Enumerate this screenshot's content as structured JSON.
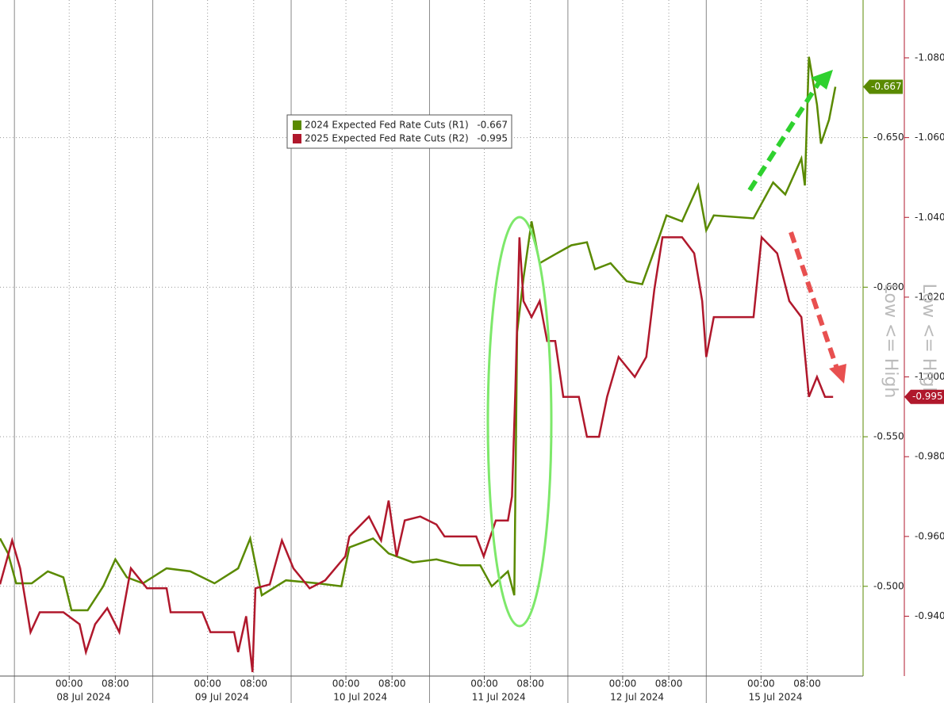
{
  "chart_data": {
    "type": "line",
    "xlim": [
      -12,
      137.7
    ],
    "xticks": [
      {
        "value": 0,
        "label": "00:00"
      },
      {
        "value": 8,
        "label": "08:00"
      },
      {
        "value": 24,
        "label": "00:00"
      },
      {
        "value": 32,
        "label": "08:00"
      },
      {
        "value": 48,
        "label": "00:00"
      },
      {
        "value": 56,
        "label": "08:00"
      },
      {
        "value": 72,
        "label": "00:00"
      },
      {
        "value": 80,
        "label": "08:00"
      },
      {
        "value": 96,
        "label": "00:00"
      },
      {
        "value": 104,
        "label": "08:00"
      },
      {
        "value": 120,
        "label": "00:00"
      },
      {
        "value": 128,
        "label": "08:00"
      }
    ],
    "x_day_labels": [
      {
        "value": 2.5,
        "label": "08 Jul 2024"
      },
      {
        "value": 26.5,
        "label": "09 Jul 2024"
      },
      {
        "value": 50.5,
        "label": "10 Jul 2024"
      },
      {
        "value": 74.5,
        "label": "11 Jul 2024"
      },
      {
        "value": 98.5,
        "label": "12 Jul 2024"
      },
      {
        "value": 122.5,
        "label": "15 Jul 2024"
      }
    ],
    "ylim": [
      -0.47,
      -0.696
    ],
    "yticks": [
      {
        "value": -0.5,
        "label": "-0.500"
      },
      {
        "value": -0.55,
        "label": "-0.550"
      },
      {
        "value": -0.6,
        "label": "-0.600"
      },
      {
        "value": -0.65,
        "label": "-0.650"
      }
    ],
    "y2lim": [
      -0.925,
      -1.0945
    ],
    "y2ticks": [
      {
        "value": -0.94,
        "label": "-0.940"
      },
      {
        "value": -0.96,
        "label": "-0.960"
      },
      {
        "value": -0.98,
        "label": "-0.980"
      },
      {
        "value": -1.0,
        "label": "-1.000"
      },
      {
        "value": -1.02,
        "label": "-1.020"
      },
      {
        "value": -1.04,
        "label": "-1.040"
      },
      {
        "value": -1.06,
        "label": "-1.060"
      },
      {
        "value": -1.08,
        "label": "-1.080"
      }
    ],
    "y_label": "Low <= High",
    "y2_label": "Low <= High",
    "grid": true,
    "series": [
      {
        "name": "2024 Expected Fed Rate Cuts (R1)",
        "color": "#5a8a00",
        "axis": "y",
        "last_label": "-0.667",
        "x": [
          -12.0,
          -10.6,
          -9.2,
          -6.5,
          -3.7,
          -1.0,
          0.4,
          3.2,
          5.9,
          8.0,
          10.0,
          12.8,
          16.9,
          21.0,
          25.2,
          29.3,
          31.4,
          33.4,
          37.6,
          43.1,
          47.2,
          48.6,
          52.7,
          55.4,
          59.6,
          63.7,
          67.8,
          71.3,
          73.3,
          76.1,
          77.2,
          77.7,
          78.8,
          80.2,
          81.6,
          84.3,
          87.1,
          89.8,
          91.2,
          93.9,
          96.7,
          99.4,
          102.2,
          103.6,
          106.3,
          109.1,
          110.5,
          111.8,
          118.7,
          120.1,
          122.1,
          124.2,
          127.0,
          127.6,
          128.3,
          129.7,
          130.4,
          131.8,
          132.9
        ],
        "values": [
          -0.516,
          -0.511,
          -0.501,
          -0.501,
          -0.505,
          -0.503,
          -0.492,
          -0.492,
          -0.5,
          -0.509,
          -0.503,
          -0.501,
          -0.506,
          -0.505,
          -0.501,
          -0.506,
          -0.516,
          -0.497,
          -0.502,
          -0.501,
          -0.5,
          -0.513,
          -0.516,
          -0.511,
          -0.508,
          -0.509,
          -0.507,
          -0.507,
          -0.5,
          -0.505,
          -0.497,
          -0.585,
          -0.603,
          -0.622,
          -0.608,
          -0.611,
          -0.614,
          -0.615,
          -0.606,
          -0.608,
          -0.602,
          -0.601,
          -0.616,
          -0.624,
          -0.622,
          -0.634,
          -0.619,
          -0.624,
          -0.623,
          -0.628,
          -0.635,
          -0.631,
          -0.643,
          -0.634,
          -0.677,
          -0.661,
          -0.648,
          -0.656,
          -0.667
        ]
      },
      {
        "name": "2025 Expected Fed Rate Cuts (R2)",
        "color": "#b0182c",
        "axis": "y2",
        "last_label": "-0.995",
        "x": [
          -12.0,
          -9.9,
          -8.5,
          -6.7,
          -5.1,
          -1.0,
          1.8,
          2.9,
          4.5,
          6.6,
          8.7,
          10.7,
          13.5,
          16.9,
          17.6,
          23.1,
          24.5,
          28.6,
          29.3,
          30.7,
          31.8,
          32.3,
          34.8,
          36.9,
          38.9,
          41.7,
          44.4,
          47.9,
          48.6,
          52.0,
          54.1,
          55.4,
          56.8,
          58.2,
          60.9,
          63.7,
          65.1,
          70.6,
          71.9,
          74.0,
          76.1,
          76.8,
          77.4,
          78.1,
          78.8,
          80.2,
          81.6,
          82.9,
          84.3,
          85.7,
          88.4,
          89.8,
          91.9,
          93.3,
          95.3,
          98.1,
          100.1,
          101.5,
          102.9,
          106.3,
          108.4,
          109.8,
          110.5,
          111.8,
          118.7,
          120.1,
          122.8,
          124.9,
          127.0,
          128.3,
          129.7,
          131.1,
          132.5
        ],
        "values": [
          -0.948,
          -0.959,
          -0.952,
          -0.936,
          -0.941,
          -0.941,
          -0.938,
          -0.931,
          -0.938,
          -0.942,
          -0.936,
          -0.952,
          -0.947,
          -0.947,
          -0.941,
          -0.941,
          -0.936,
          -0.936,
          -0.931,
          -0.94,
          -0.926,
          -0.947,
          -0.948,
          -0.959,
          -0.952,
          -0.947,
          -0.949,
          -0.955,
          -0.96,
          -0.965,
          -0.959,
          -0.969,
          -0.955,
          -0.964,
          -0.965,
          -0.963,
          -0.96,
          -0.96,
          -0.955,
          -0.964,
          -0.964,
          -0.97,
          -0.997,
          -1.035,
          -1.019,
          -1.015,
          -1.019,
          -1.009,
          -1.009,
          -0.995,
          -0.995,
          -0.985,
          -0.985,
          -0.995,
          -1.005,
          -1.0,
          -1.005,
          -1.022,
          -1.035,
          -1.035,
          -1.031,
          -1.019,
          -1.005,
          -1.015,
          -1.015,
          -1.035,
          -1.031,
          -1.019,
          -1.015,
          -0.995,
          -1.0,
          -0.995,
          -0.995
        ]
      }
    ]
  }
}
